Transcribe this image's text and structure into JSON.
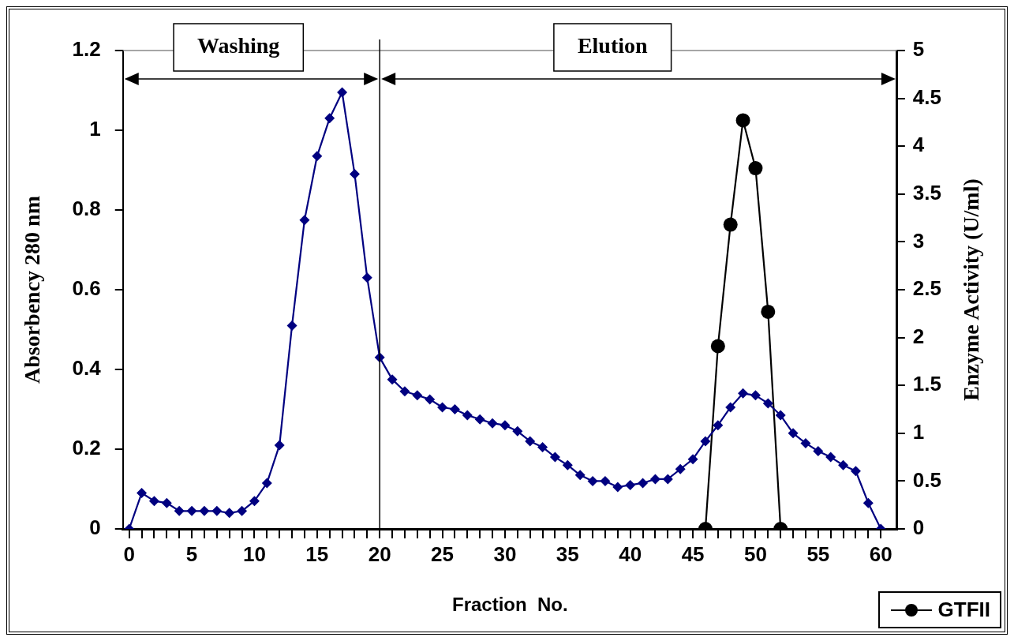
{
  "chart_data": {
    "type": "line",
    "xlabel": "Fraction  No.",
    "ylabel": "Absorbency 280 nm",
    "y2label": "Enzyme Activity (U/ml)",
    "x": [
      0,
      1,
      2,
      3,
      4,
      5,
      6,
      7,
      8,
      9,
      10,
      11,
      12,
      13,
      14,
      15,
      16,
      17,
      18,
      19,
      20,
      21,
      22,
      23,
      24,
      25,
      26,
      27,
      28,
      29,
      30,
      31,
      32,
      33,
      34,
      35,
      36,
      37,
      38,
      39,
      40,
      41,
      42,
      43,
      44,
      45,
      46,
      47,
      48,
      49,
      50,
      51,
      52,
      53,
      54,
      55,
      56,
      57,
      58,
      59,
      60
    ],
    "series": [
      {
        "color": "#000080",
        "marker": "diamond",
        "values": [
          0,
          0.09,
          0.07,
          0.065,
          0.045,
          0.045,
          0.045,
          0.045,
          0.04,
          0.045,
          0.07,
          0.115,
          0.21,
          0.51,
          0.775,
          0.935,
          1.03,
          1.095,
          0.89,
          0.63,
          0.43,
          0.375,
          0.345,
          0.335,
          0.325,
          0.305,
          0.3,
          0.285,
          0.275,
          0.265,
          0.26,
          0.245,
          0.22,
          0.205,
          0.18,
          0.16,
          0.135,
          0.12,
          0.12,
          0.105,
          0.11,
          0.115,
          0.125,
          0.125,
          0.15,
          0.175,
          0.22,
          0.26,
          0.305,
          0.34,
          0.335,
          0.315,
          0.285,
          0.24,
          0.215,
          0.195,
          0.18,
          0.16,
          0.145,
          0.065,
          0
        ]
      },
      {
        "name": "GTFII",
        "color": "#000000",
        "marker": "circle",
        "axis": "y2",
        "x": [
          46,
          47,
          48,
          49,
          50,
          51,
          52
        ],
        "values": [
          0,
          1.91,
          3.18,
          4.27,
          3.77,
          2.27,
          0
        ]
      }
    ],
    "xlim": [
      -0.5,
      61.3
    ],
    "xticks": [
      0,
      {
        "value": 1,
        "label": null
      },
      {
        "value": 2,
        "label": null
      },
      {
        "value": 3,
        "label": null
      },
      {
        "value": 4,
        "label": null
      },
      5,
      {
        "value": 6,
        "label": null
      },
      {
        "value": 7,
        "label": null
      },
      {
        "value": 8,
        "label": null
      },
      {
        "value": 9,
        "label": null
      },
      10,
      {
        "value": 11,
        "label": null
      },
      {
        "value": 12,
        "label": null
      },
      {
        "value": 13,
        "label": null
      },
      {
        "value": 14,
        "label": null
      },
      15,
      {
        "value": 16,
        "label": null
      },
      {
        "value": 17,
        "label": null
      },
      {
        "value": 18,
        "label": null
      },
      {
        "value": 19,
        "label": null
      },
      20,
      {
        "value": 21,
        "label": null
      },
      {
        "value": 22,
        "label": null
      },
      {
        "value": 23,
        "label": null
      },
      {
        "value": 24,
        "label": null
      },
      25,
      {
        "value": 26,
        "label": null
      },
      {
        "value": 27,
        "label": null
      },
      {
        "value": 28,
        "label": null
      },
      {
        "value": 29,
        "label": null
      },
      30,
      {
        "value": 31,
        "label": null
      },
      {
        "value": 32,
        "label": null
      },
      {
        "value": 33,
        "label": null
      },
      {
        "value": 34,
        "label": null
      },
      35,
      {
        "value": 36,
        "label": null
      },
      {
        "value": 37,
        "label": null
      },
      {
        "value": 38,
        "label": null
      },
      {
        "value": 39,
        "label": null
      },
      40,
      {
        "value": 41,
        "label": null
      },
      {
        "value": 42,
        "label": null
      },
      {
        "value": 43,
        "label": null
      },
      {
        "value": 44,
        "label": null
      },
      45,
      {
        "value": 46,
        "label": null
      },
      {
        "value": 47,
        "label": null
      },
      {
        "value": 48,
        "label": null
      },
      {
        "value": 49,
        "label": null
      },
      50,
      {
        "value": 51,
        "label": null
      },
      {
        "value": 52,
        "label": null
      },
      {
        "value": 53,
        "label": null
      },
      {
        "value": 54,
        "label": null
      },
      55,
      {
        "value": 56,
        "label": null
      },
      {
        "value": 57,
        "label": null
      },
      {
        "value": 58,
        "label": null
      },
      {
        "value": 59,
        "label": null
      },
      60
    ],
    "ylim": [
      0,
      1.2
    ],
    "yticks": [
      0,
      0.2,
      0.4,
      0.6,
      0.8,
      1,
      1.2
    ],
    "y2lim": [
      0,
      5
    ],
    "y2ticks": [
      0,
      0.5,
      1,
      1.5,
      2,
      2.5,
      3,
      3.5,
      4,
      4.5,
      5
    ],
    "ref_lines": [
      {
        "axis": "x",
        "value": 20,
        "color": "#000000"
      }
    ],
    "annotations": [
      "Washing",
      "Elution"
    ],
    "grid": false,
    "legend": "bottom right",
    "line_style": "solid"
  }
}
